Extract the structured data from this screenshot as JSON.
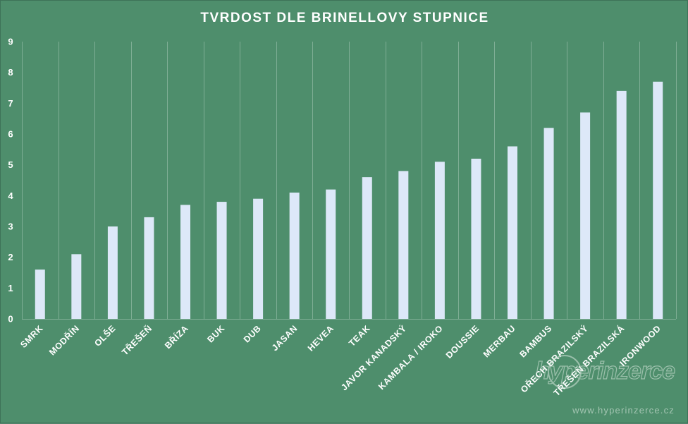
{
  "chart_data": {
    "type": "bar",
    "title": "TVRDOST DLE BRINELLOVY STUPNICE",
    "xlabel": "",
    "ylabel": "",
    "ylim": [
      0,
      9
    ],
    "yticks": [
      "0",
      "1",
      "2",
      "3",
      "4",
      "5",
      "6",
      "7",
      "8",
      "9"
    ],
    "grid": "vertical",
    "categories": [
      "SMRK",
      "MODŘÍN",
      "OLŠE",
      "TŘEŠEŇ",
      "BŘÍZA",
      "BUK",
      "DUB",
      "JASAN",
      "HEVEA",
      "TEAK",
      "JAVOR KANADSKÝ",
      "KAMBALA / IROKO",
      "DOUSSIE",
      "MERBAU",
      "BAMBUS",
      "OŘECH BRAZILSKÝ",
      "TŘEŠEŇ BRAZILSKÁ",
      "IRONWOOD"
    ],
    "values": [
      1.6,
      2.1,
      3.0,
      3.3,
      3.7,
      3.8,
      3.9,
      4.1,
      4.2,
      4.6,
      4.8,
      5.1,
      5.2,
      5.6,
      6.2,
      6.7,
      7.4,
      7.7
    ],
    "colors": {
      "background": "#4e8e6c",
      "bar": "#dde8f8",
      "grid": "#7fae95",
      "text": "#ffffff"
    }
  },
  "watermark": {
    "logo": "hyperinzerce",
    "url": "www.hyperinzerce.cz"
  }
}
